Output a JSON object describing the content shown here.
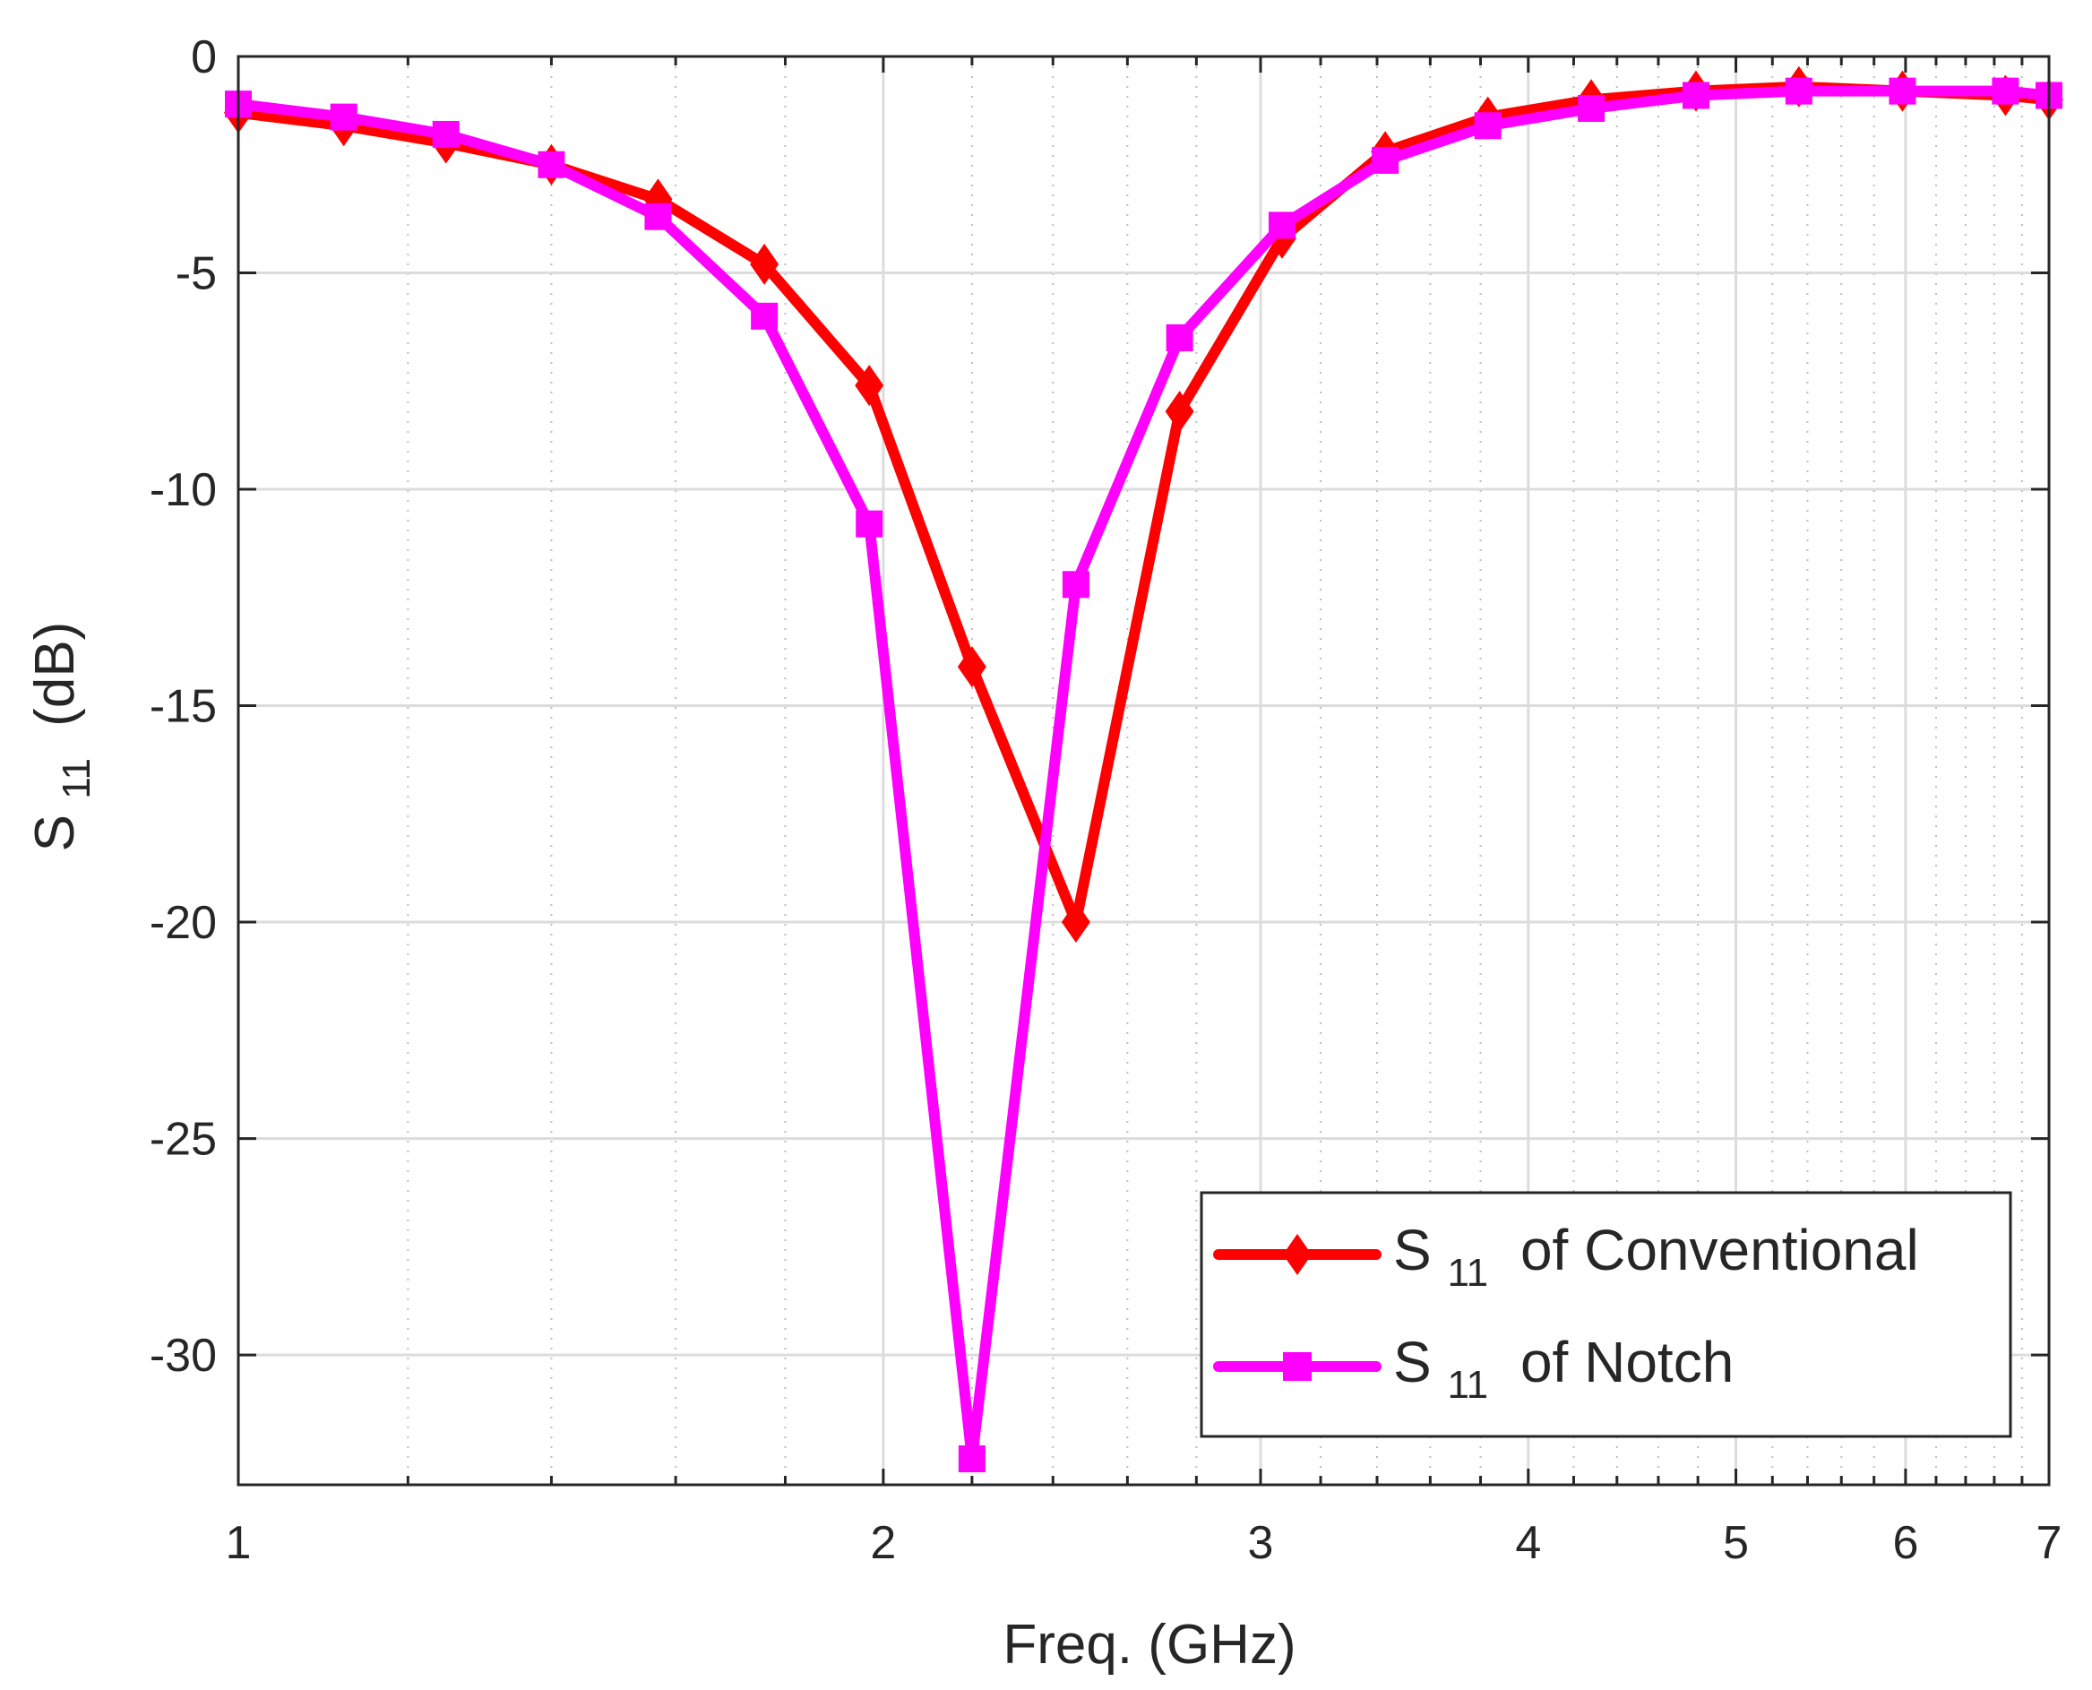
{
  "chart_data": {
    "type": "line",
    "title": "",
    "xlabel": "Freq. (GHz)",
    "ylabel_main": "S",
    "ylabel_sub": "11",
    "ylabel_suffix": "(dB)",
    "xscale": "log",
    "xlim": [
      1,
      7
    ],
    "ylim": [
      -33,
      0
    ],
    "x_ticks": [
      1,
      2,
      3,
      4,
      5,
      6,
      7
    ],
    "x_tick_labels": [
      "1",
      "2",
      "3",
      "4",
      "5",
      "6",
      "7"
    ],
    "x_minor_ticks": [
      1.2,
      1.4,
      1.6,
      1.8,
      2.2,
      2.4,
      2.6,
      2.8,
      3.2,
      3.4,
      3.6,
      3.8,
      4.2,
      4.4,
      4.6,
      4.8,
      5.2,
      5.4,
      5.6,
      5.8,
      6.2,
      6.4,
      6.6,
      6.8
    ],
    "y_ticks": [
      0,
      -5,
      -10,
      -15,
      -20,
      -25,
      -30
    ],
    "y_tick_labels": [
      "0",
      "-5",
      "-10",
      "-15",
      "-20",
      "-25",
      "-30"
    ],
    "grid": true,
    "legend_position": "bottom-right",
    "series": [
      {
        "name_main": "S",
        "name_sub": "11",
        "name_suffix": "of Conventional",
        "color": "#ff0000",
        "marker": "diamond",
        "x": [
          1.0,
          1.12,
          1.25,
          1.4,
          1.57,
          1.76,
          1.97,
          2.2,
          2.46,
          2.75,
          3.07,
          3.43,
          3.83,
          4.28,
          4.79,
          5.35,
          5.98,
          6.68,
          7.0
        ],
        "y": [
          -1.3,
          -1.6,
          -2.0,
          -2.5,
          -3.3,
          -4.8,
          -7.6,
          -14.1,
          -20.0,
          -8.2,
          -4.2,
          -2.2,
          -1.4,
          -1.0,
          -0.8,
          -0.7,
          -0.8,
          -0.9,
          -1.0
        ]
      },
      {
        "name_main": "S",
        "name_sub": "11",
        "name_suffix": "of Notch",
        "color": "#ff00ff",
        "marker": "square",
        "x": [
          1.0,
          1.12,
          1.25,
          1.4,
          1.57,
          1.76,
          1.97,
          2.2,
          2.46,
          2.75,
          3.07,
          3.43,
          3.83,
          4.28,
          4.79,
          5.35,
          5.98,
          6.68,
          7.0
        ],
        "y": [
          -1.1,
          -1.4,
          -1.8,
          -2.5,
          -3.7,
          -6.0,
          -10.8,
          -32.4,
          -12.2,
          -6.5,
          -3.9,
          -2.4,
          -1.6,
          -1.2,
          -0.9,
          -0.8,
          -0.8,
          -0.8,
          -0.9
        ]
      }
    ]
  }
}
